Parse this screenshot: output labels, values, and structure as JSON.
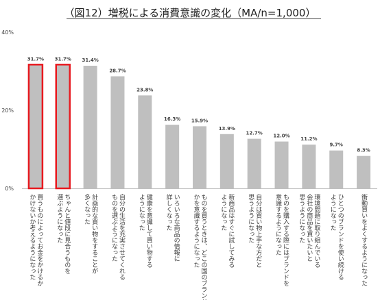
{
  "chart_data": {
    "type": "bar",
    "title": "（図12）増税による消費意識の変化（MA/n=1,000）",
    "ylim": [
      0,
      40
    ],
    "yticks": [
      "0%",
      "20%",
      "40%"
    ],
    "ytick_values": [
      0,
      20,
      40
    ],
    "grid": false,
    "unit": "%",
    "categories": [
      "買うものによってお金をかけるか\nかけないか考えるようになった",
      "ちゃんと値段に見合うものを\n選ぶようになった",
      "計画的な買い物をすることが\n多くなった",
      "自分の生活を充実させてくれる\nものを選ぶようになった",
      "健康を意識して買い物する\nようになった",
      "いろいろな商品の情報に\n詳しくなった",
      "ものを買うときは、どこの国のブランド\nかを意識するようになった",
      "新商品はすぐに試してみる\nようになった",
      "自分は買い物上手な方だと\n思うようになった",
      "ものを購入する際にはブランドを\n意識するようになった",
      "環境問題に取り組んでいる\n会社の商品を買いたいと\n思うようになった",
      "ひとつのブランドを使い続ける\nようになった",
      "衝動買いをよくするようになった"
    ],
    "values": [
      31.7,
      31.7,
      31.4,
      28.7,
      23.8,
      16.3,
      15.9,
      13.9,
      12.7,
      12.0,
      11.2,
      9.7,
      8.3
    ],
    "value_labels": [
      "31.7%",
      "31.7%",
      "31.4%",
      "28.7%",
      "23.8%",
      "16.3%",
      "15.9%",
      "13.9%",
      "12.7%",
      "12.0%",
      "11.2%",
      "9.7%",
      "8.3%"
    ],
    "highlighted": [
      true,
      true,
      false,
      false,
      false,
      false,
      false,
      false,
      false,
      false,
      false,
      false,
      false
    ],
    "colors": {
      "bar": "#bfbfbf",
      "highlight_outline": "#e8191f",
      "axis": "#bfbfbf",
      "text": "#404040"
    }
  }
}
